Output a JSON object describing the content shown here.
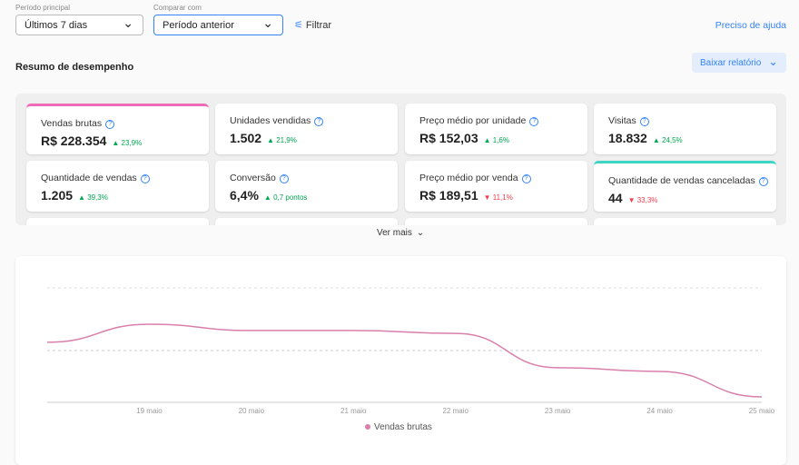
{
  "header": {
    "main_period_label": "Período principal",
    "main_period_value": "Últimos 7 dias",
    "compare_label": "Comparar com",
    "compare_value": "Período anterior",
    "filter": "Filtrar",
    "help": "Preciso de ajuda"
  },
  "summary": {
    "title": "Resumo de desempenho",
    "download": "Baixar relatório",
    "cards": [
      {
        "label": "Vendas brutas",
        "value": "R$ 228.354",
        "change": "23,9%",
        "direction": "up",
        "accent": "#f06bb5"
      },
      {
        "label": "Unidades vendidas",
        "value": "1.502",
        "change": "21,9%",
        "direction": "up"
      },
      {
        "label": "Preço médio por unidade",
        "value": "R$ 152,03",
        "change": "1,6%",
        "direction": "up"
      },
      {
        "label": "Visitas",
        "value": "18.832",
        "change": "24,5%",
        "direction": "up"
      },
      {
        "label": "Quantidade de vendas",
        "value": "1.205",
        "change": "39,3%",
        "direction": "up"
      },
      {
        "label": "Conversão",
        "value": "6,4%",
        "change": "0,7 pontos",
        "direction": "up"
      },
      {
        "label": "Preço médio por venda",
        "value": "R$ 189,51",
        "change": "11,1%",
        "direction": "down"
      },
      {
        "label": "Quantidade de vendas canceladas",
        "value": "44",
        "change": "33,3%",
        "direction": "down",
        "accent": "#3dd6c4"
      }
    ],
    "more": "Ver mais"
  },
  "chart_data": {
    "type": "line",
    "categories": [
      null,
      "19 maio",
      "20 maio",
      "21 maio",
      "22 maio",
      "23 maio",
      "24 maio",
      "25 maio"
    ],
    "series": [
      {
        "name": "Vendas brutas",
        "color": "#d97fab",
        "values": [
          21000,
          27300,
          25100,
          25100,
          24100,
          12100,
          10800,
          1900
        ]
      }
    ],
    "ylim": [
      0,
      40000
    ]
  }
}
